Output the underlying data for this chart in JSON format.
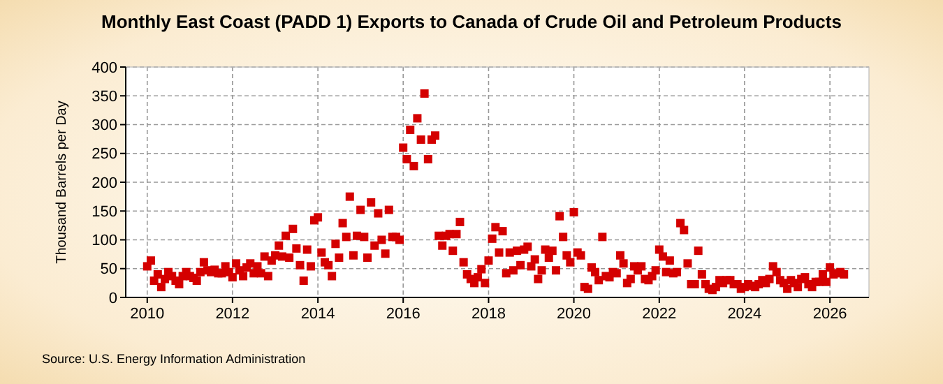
{
  "chart_data": {
    "type": "scatter",
    "title": "Monthly East Coast (PADD 1) Exports to Canada of Crude Oil and Petroleum Products",
    "ylabel": "Thousand Barrels per Day",
    "annotations": [
      "Source: U.S. Energy Information Administration"
    ],
    "x": [
      "2010-01",
      "2010-02",
      "2010-03",
      "2010-04",
      "2010-05",
      "2010-06",
      "2010-07",
      "2010-08",
      "2010-09",
      "2010-10",
      "2010-11",
      "2010-12",
      "2011-01",
      "2011-02",
      "2011-03",
      "2011-04",
      "2011-05",
      "2011-06",
      "2011-07",
      "2011-08",
      "2011-09",
      "2011-10",
      "2011-11",
      "2011-12",
      "2012-01",
      "2012-02",
      "2012-03",
      "2012-04",
      "2012-05",
      "2012-06",
      "2012-07",
      "2012-08",
      "2012-09",
      "2012-10",
      "2012-11",
      "2012-12",
      "2013-01",
      "2013-02",
      "2013-03",
      "2013-04",
      "2013-05",
      "2013-06",
      "2013-07",
      "2013-08",
      "2013-09",
      "2013-10",
      "2013-11",
      "2013-12",
      "2014-01",
      "2014-02",
      "2014-03",
      "2014-04",
      "2014-05",
      "2014-06",
      "2014-07",
      "2014-08",
      "2014-09",
      "2014-10",
      "2014-11",
      "2014-12",
      "2015-01",
      "2015-02",
      "2015-03",
      "2015-04",
      "2015-05",
      "2015-06",
      "2015-07",
      "2015-08",
      "2015-09",
      "2015-10",
      "2015-11",
      "2015-12",
      "2016-01",
      "2016-02",
      "2016-03",
      "2016-04",
      "2016-05",
      "2016-06",
      "2016-07",
      "2016-08",
      "2016-09",
      "2016-10",
      "2016-11",
      "2016-12",
      "2017-01",
      "2017-02",
      "2017-03",
      "2017-04",
      "2017-05",
      "2017-06",
      "2017-07",
      "2017-08",
      "2017-09",
      "2017-10",
      "2017-11",
      "2017-12",
      "2018-01",
      "2018-02",
      "2018-03",
      "2018-04",
      "2018-05",
      "2018-06",
      "2018-07",
      "2018-08",
      "2018-09",
      "2018-10",
      "2018-11",
      "2018-12",
      "2019-01",
      "2019-02",
      "2019-03",
      "2019-04",
      "2019-05",
      "2019-06",
      "2019-07",
      "2019-08",
      "2019-09",
      "2019-10",
      "2019-11",
      "2019-12",
      "2020-01",
      "2020-02",
      "2020-03",
      "2020-04",
      "2020-05",
      "2020-06",
      "2020-07",
      "2020-08",
      "2020-09",
      "2020-10",
      "2020-11",
      "2020-12",
      "2021-01",
      "2021-02",
      "2021-03",
      "2021-04",
      "2021-05",
      "2021-06",
      "2021-07",
      "2021-08",
      "2021-09",
      "2021-10",
      "2021-11",
      "2021-12",
      "2022-01",
      "2022-02",
      "2022-03",
      "2022-04",
      "2022-05",
      "2022-06",
      "2022-07",
      "2022-08",
      "2022-09",
      "2022-10",
      "2022-11",
      "2022-12",
      "2023-01",
      "2023-02",
      "2023-03",
      "2023-04",
      "2023-05",
      "2023-06",
      "2023-07",
      "2023-08",
      "2023-09",
      "2023-10",
      "2023-11",
      "2023-12",
      "2024-01",
      "2024-02",
      "2024-03",
      "2024-04",
      "2024-05",
      "2024-06",
      "2024-07",
      "2024-08",
      "2024-09",
      "2024-10",
      "2024-11",
      "2024-12",
      "2025-01",
      "2025-02",
      "2025-03",
      "2025-04",
      "2025-05",
      "2025-06",
      "2025-07",
      "2025-08",
      "2025-09",
      "2025-10",
      "2025-11",
      "2025-12",
      "2026-01",
      "2026-02",
      "2026-03",
      "2026-04",
      "2026-05"
    ],
    "series": [
      {
        "color": "#d40000",
        "values": [
          54,
          64,
          29,
          40,
          18,
          32,
          44,
          37,
          29,
          23,
          37,
          44,
          37,
          34,
          29,
          44,
          61,
          47,
          44,
          48,
          42,
          42,
          54,
          44,
          35,
          59,
          47,
          37,
          52,
          59,
          42,
          54,
          42,
          71,
          37,
          64,
          73,
          90,
          71,
          107,
          69,
          119,
          85,
          56,
          29,
          83,
          54,
          134,
          139,
          78,
          61,
          56,
          37,
          93,
          69,
          129,
          105,
          175,
          73,
          107,
          152,
          105,
          69,
          165,
          90,
          146,
          100,
          76,
          152,
          105,
          105,
          100,
          260,
          240,
          291,
          228,
          311,
          274,
          354,
          240,
          274,
          281,
          107,
          90,
          107,
          110,
          81,
          110,
          131,
          61,
          40,
          32,
          25,
          35,
          49,
          25,
          64,
          102,
          122,
          78,
          115,
          42,
          78,
          47,
          81,
          56,
          83,
          88,
          54,
          66,
          32,
          47,
          83,
          69,
          81,
          47,
          141,
          105,
          73,
          61,
          148,
          78,
          73,
          18,
          15,
          52,
          44,
          30,
          105,
          37,
          35,
          44,
          42,
          73,
          59,
          25,
          32,
          54,
          47,
          54,
          32,
          30,
          37,
          47,
          83,
          71,
          44,
          64,
          42,
          44,
          129,
          117,
          59,
          23,
          23,
          81,
          40,
          23,
          15,
          13,
          18,
          30,
          25,
          30,
          30,
          23,
          23,
          15,
          18,
          23,
          20,
          18,
          23,
          30,
          25,
          32,
          54,
          44,
          30,
          25,
          15,
          30,
          25,
          18,
          32,
          35,
          23,
          18,
          27,
          27,
          40,
          27,
          52,
          40,
          42,
          44,
          40
        ]
      }
    ],
    "xlim": [
      "2009-07",
      "2026-12"
    ],
    "xticks": [
      "2010",
      "2012",
      "2014",
      "2016",
      "2018",
      "2020",
      "2022",
      "2024",
      "2026"
    ],
    "ylim": [
      0,
      400
    ],
    "yticks": [
      0,
      50,
      100,
      150,
      200,
      250,
      300,
      350,
      400
    ],
    "grid": true,
    "marker": "square"
  }
}
